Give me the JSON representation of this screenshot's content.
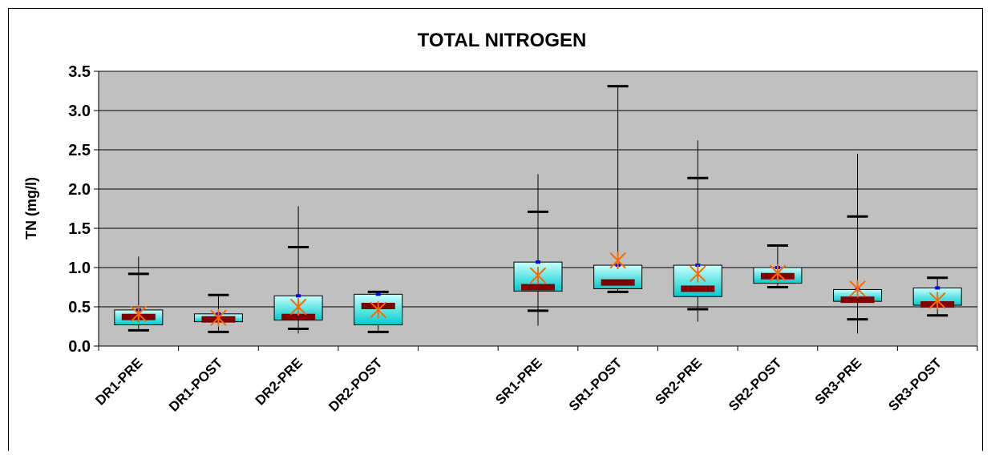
{
  "chart_data": {
    "type": "box",
    "title": "TOTAL NITROGEN",
    "ylabel": "TN (mg/l)",
    "xlabel": "",
    "ylim": [
      0,
      3.5
    ],
    "yticks": [
      "0.0",
      "0.5",
      "1.0",
      "1.5",
      "2.0",
      "2.5",
      "3.0",
      "3.5"
    ],
    "grid": true,
    "slots": [
      "DR1-PRE",
      "DR1-POST",
      "DR2-PRE",
      "DR2-POST",
      "",
      "SR1-PRE",
      "SR1-POST",
      "SR2-PRE",
      "SR2-POST",
      "SR3-PRE",
      "SR3-POST"
    ],
    "boxes": [
      {
        "category": "DR1-PRE",
        "min": 0.2,
        "p10": 0.2,
        "q1": 0.27,
        "median": 0.37,
        "q3": 0.46,
        "p90": 0.92,
        "max": 1.14,
        "mean": 0.41
      },
      {
        "category": "DR1-POST",
        "min": 0.18,
        "p10": 0.18,
        "q1": 0.31,
        "median": 0.34,
        "q3": 0.41,
        "p90": 0.65,
        "max": 0.65,
        "mean": 0.36
      },
      {
        "category": "DR2-PRE",
        "min": 0.16,
        "p10": 0.22,
        "q1": 0.33,
        "median": 0.37,
        "q3": 0.64,
        "p90": 1.26,
        "max": 1.78,
        "mean": 0.5
      },
      {
        "category": "DR2-POST",
        "min": 0.18,
        "p10": 0.18,
        "q1": 0.27,
        "median": 0.51,
        "q3": 0.66,
        "p90": 0.69,
        "max": 0.69,
        "mean": 0.46
      },
      {
        "category": "SR1-PRE",
        "min": 0.26,
        "p10": 0.45,
        "q1": 0.7,
        "median": 0.75,
        "q3": 1.07,
        "p90": 1.71,
        "max": 2.19,
        "mean": 0.9
      },
      {
        "category": "SR1-POST",
        "min": 0.69,
        "p10": 0.69,
        "q1": 0.73,
        "median": 0.81,
        "q3": 1.03,
        "p90": 3.31,
        "max": 3.31,
        "mean": 1.09
      },
      {
        "category": "SR2-PRE",
        "min": 0.31,
        "p10": 0.47,
        "q1": 0.63,
        "median": 0.73,
        "q3": 1.03,
        "p90": 2.14,
        "max": 2.62,
        "mean": 0.92
      },
      {
        "category": "SR2-POST",
        "min": 0.75,
        "p10": 0.75,
        "q1": 0.8,
        "median": 0.89,
        "q3": 1.0,
        "p90": 1.28,
        "max": 1.28,
        "mean": 0.93
      },
      {
        "category": "SR3-PRE",
        "min": 0.16,
        "p10": 0.34,
        "q1": 0.57,
        "median": 0.59,
        "q3": 0.72,
        "p90": 1.65,
        "max": 2.45,
        "mean": 0.73
      },
      {
        "category": "SR3-POST",
        "min": 0.39,
        "p10": 0.39,
        "q1": 0.52,
        "median": 0.53,
        "q3": 0.74,
        "p90": 0.87,
        "max": 0.87,
        "mean": 0.58
      }
    ],
    "colors": {
      "plot_background": "#c0c0c0",
      "box_fill_light": "#ccffff",
      "box_fill_dark": "#00cccc",
      "median_bar": "#800000",
      "mean_marker": "#ff6600",
      "q3_marker": "#0000ff",
      "whisker": "#000000",
      "gridline": "#000000"
    }
  }
}
